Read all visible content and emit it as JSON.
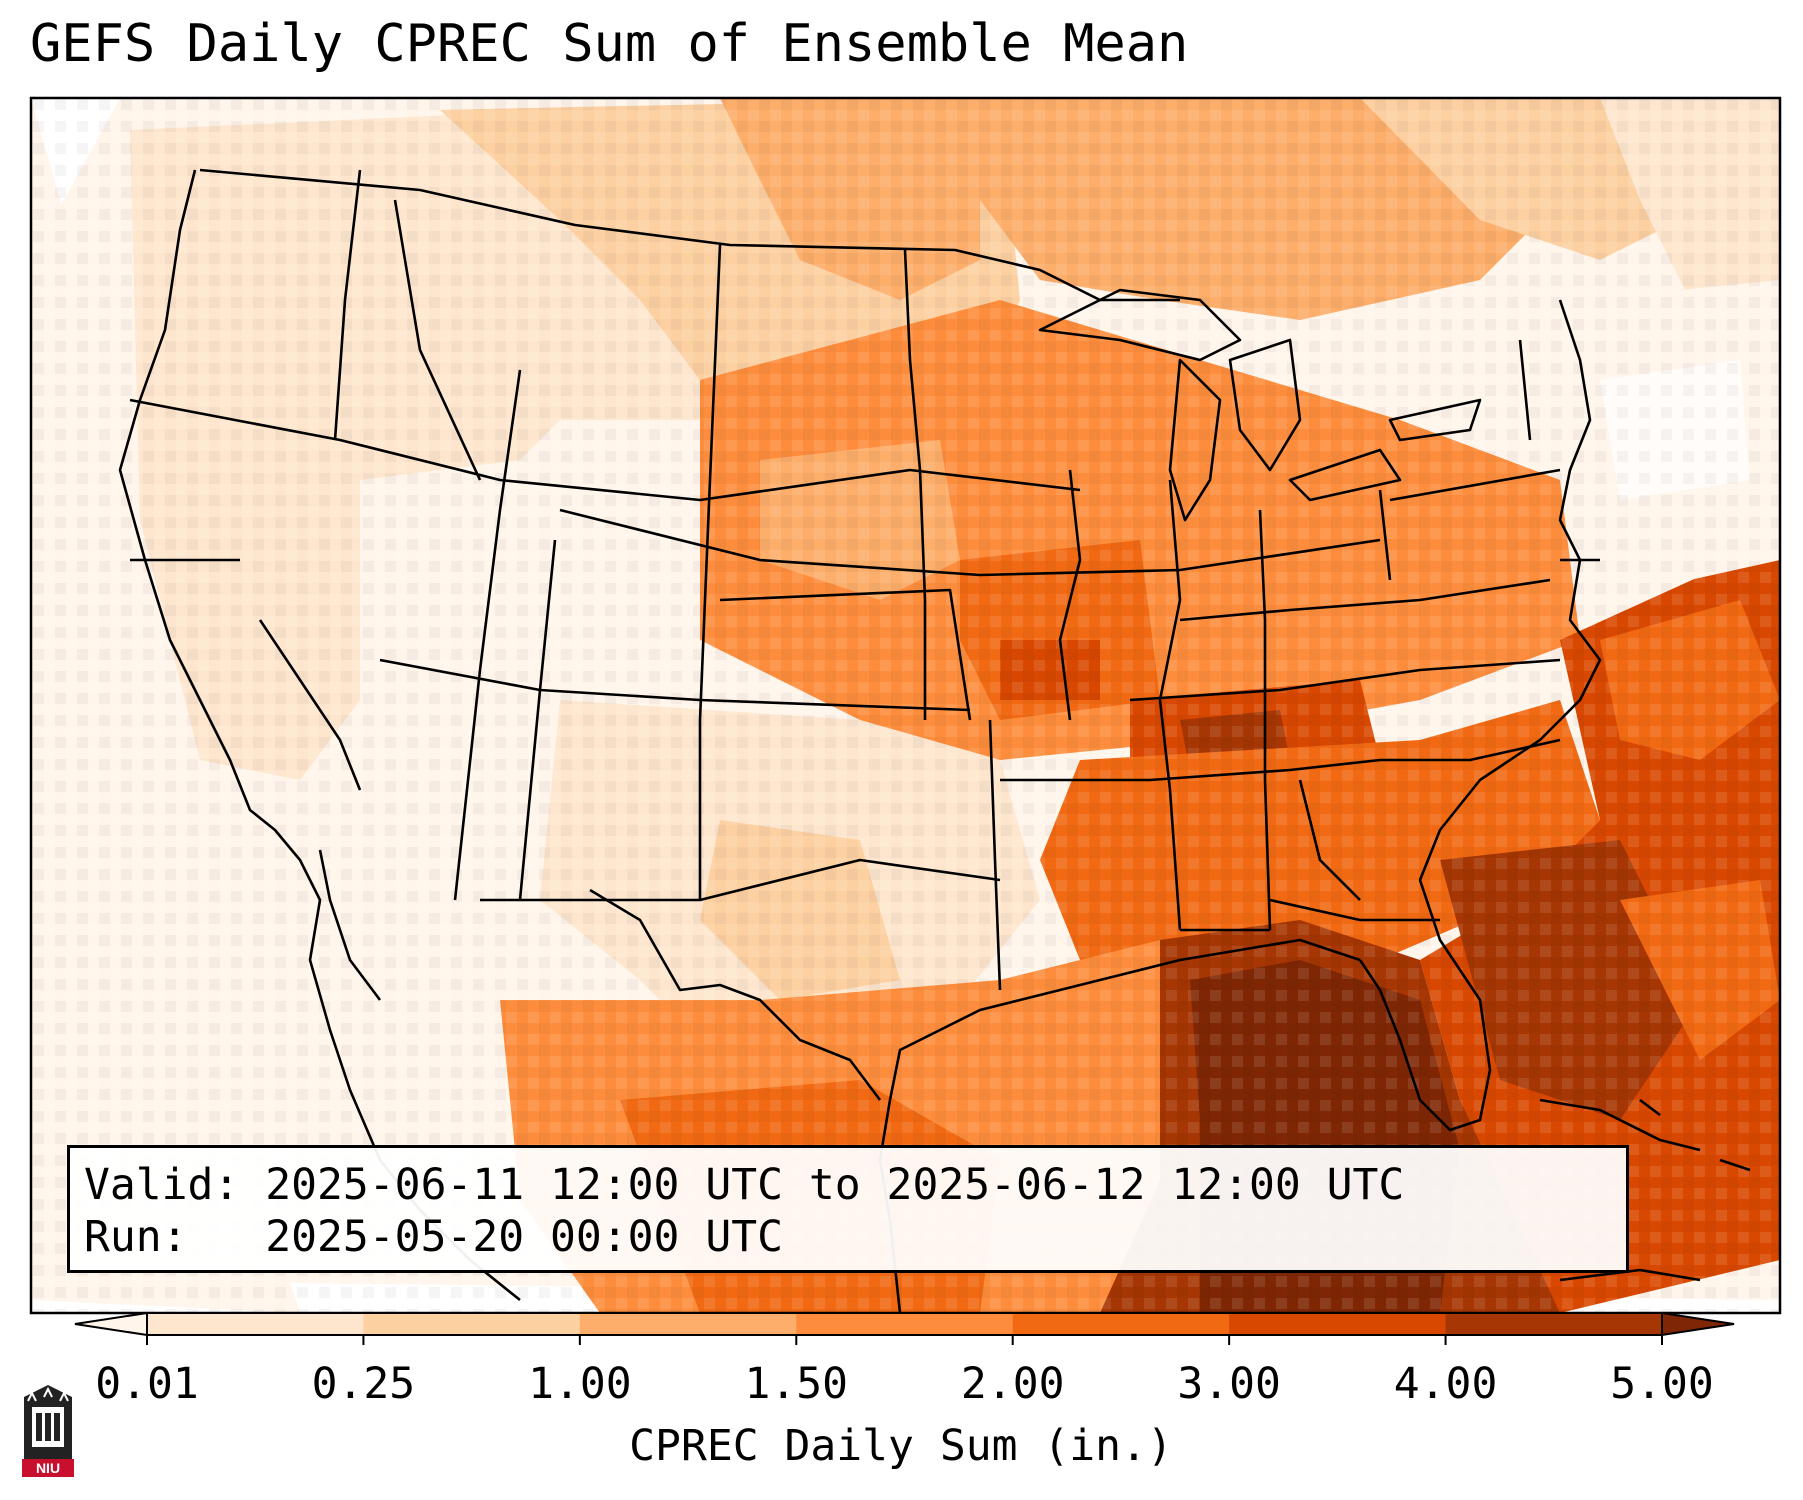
{
  "title": "GEFS Daily CPREC Sum of Ensemble Mean",
  "info": {
    "valid_label": "Valid:",
    "valid_value": "2025-06-11 12:00 UTC to 2025-06-12 12:00 UTC",
    "run_label": "Run:",
    "run_value": "2025-05-20 00:00 UTC"
  },
  "colorbar": {
    "label": "CPREC Daily Sum (in.)",
    "ticks": [
      "0.01",
      "0.25",
      "1.00",
      "1.50",
      "2.00",
      "3.00",
      "4.00",
      "5.00"
    ],
    "colors": [
      "#fff5eb",
      "#fee6ce",
      "#fdd0a2",
      "#fdae6b",
      "#fd8d3c",
      "#f16913",
      "#d94801",
      "#a63603",
      "#7f2704"
    ]
  },
  "logo": {
    "text": "NIU"
  },
  "colors": {
    "border": "#000000",
    "land_outline": "#000000"
  }
}
